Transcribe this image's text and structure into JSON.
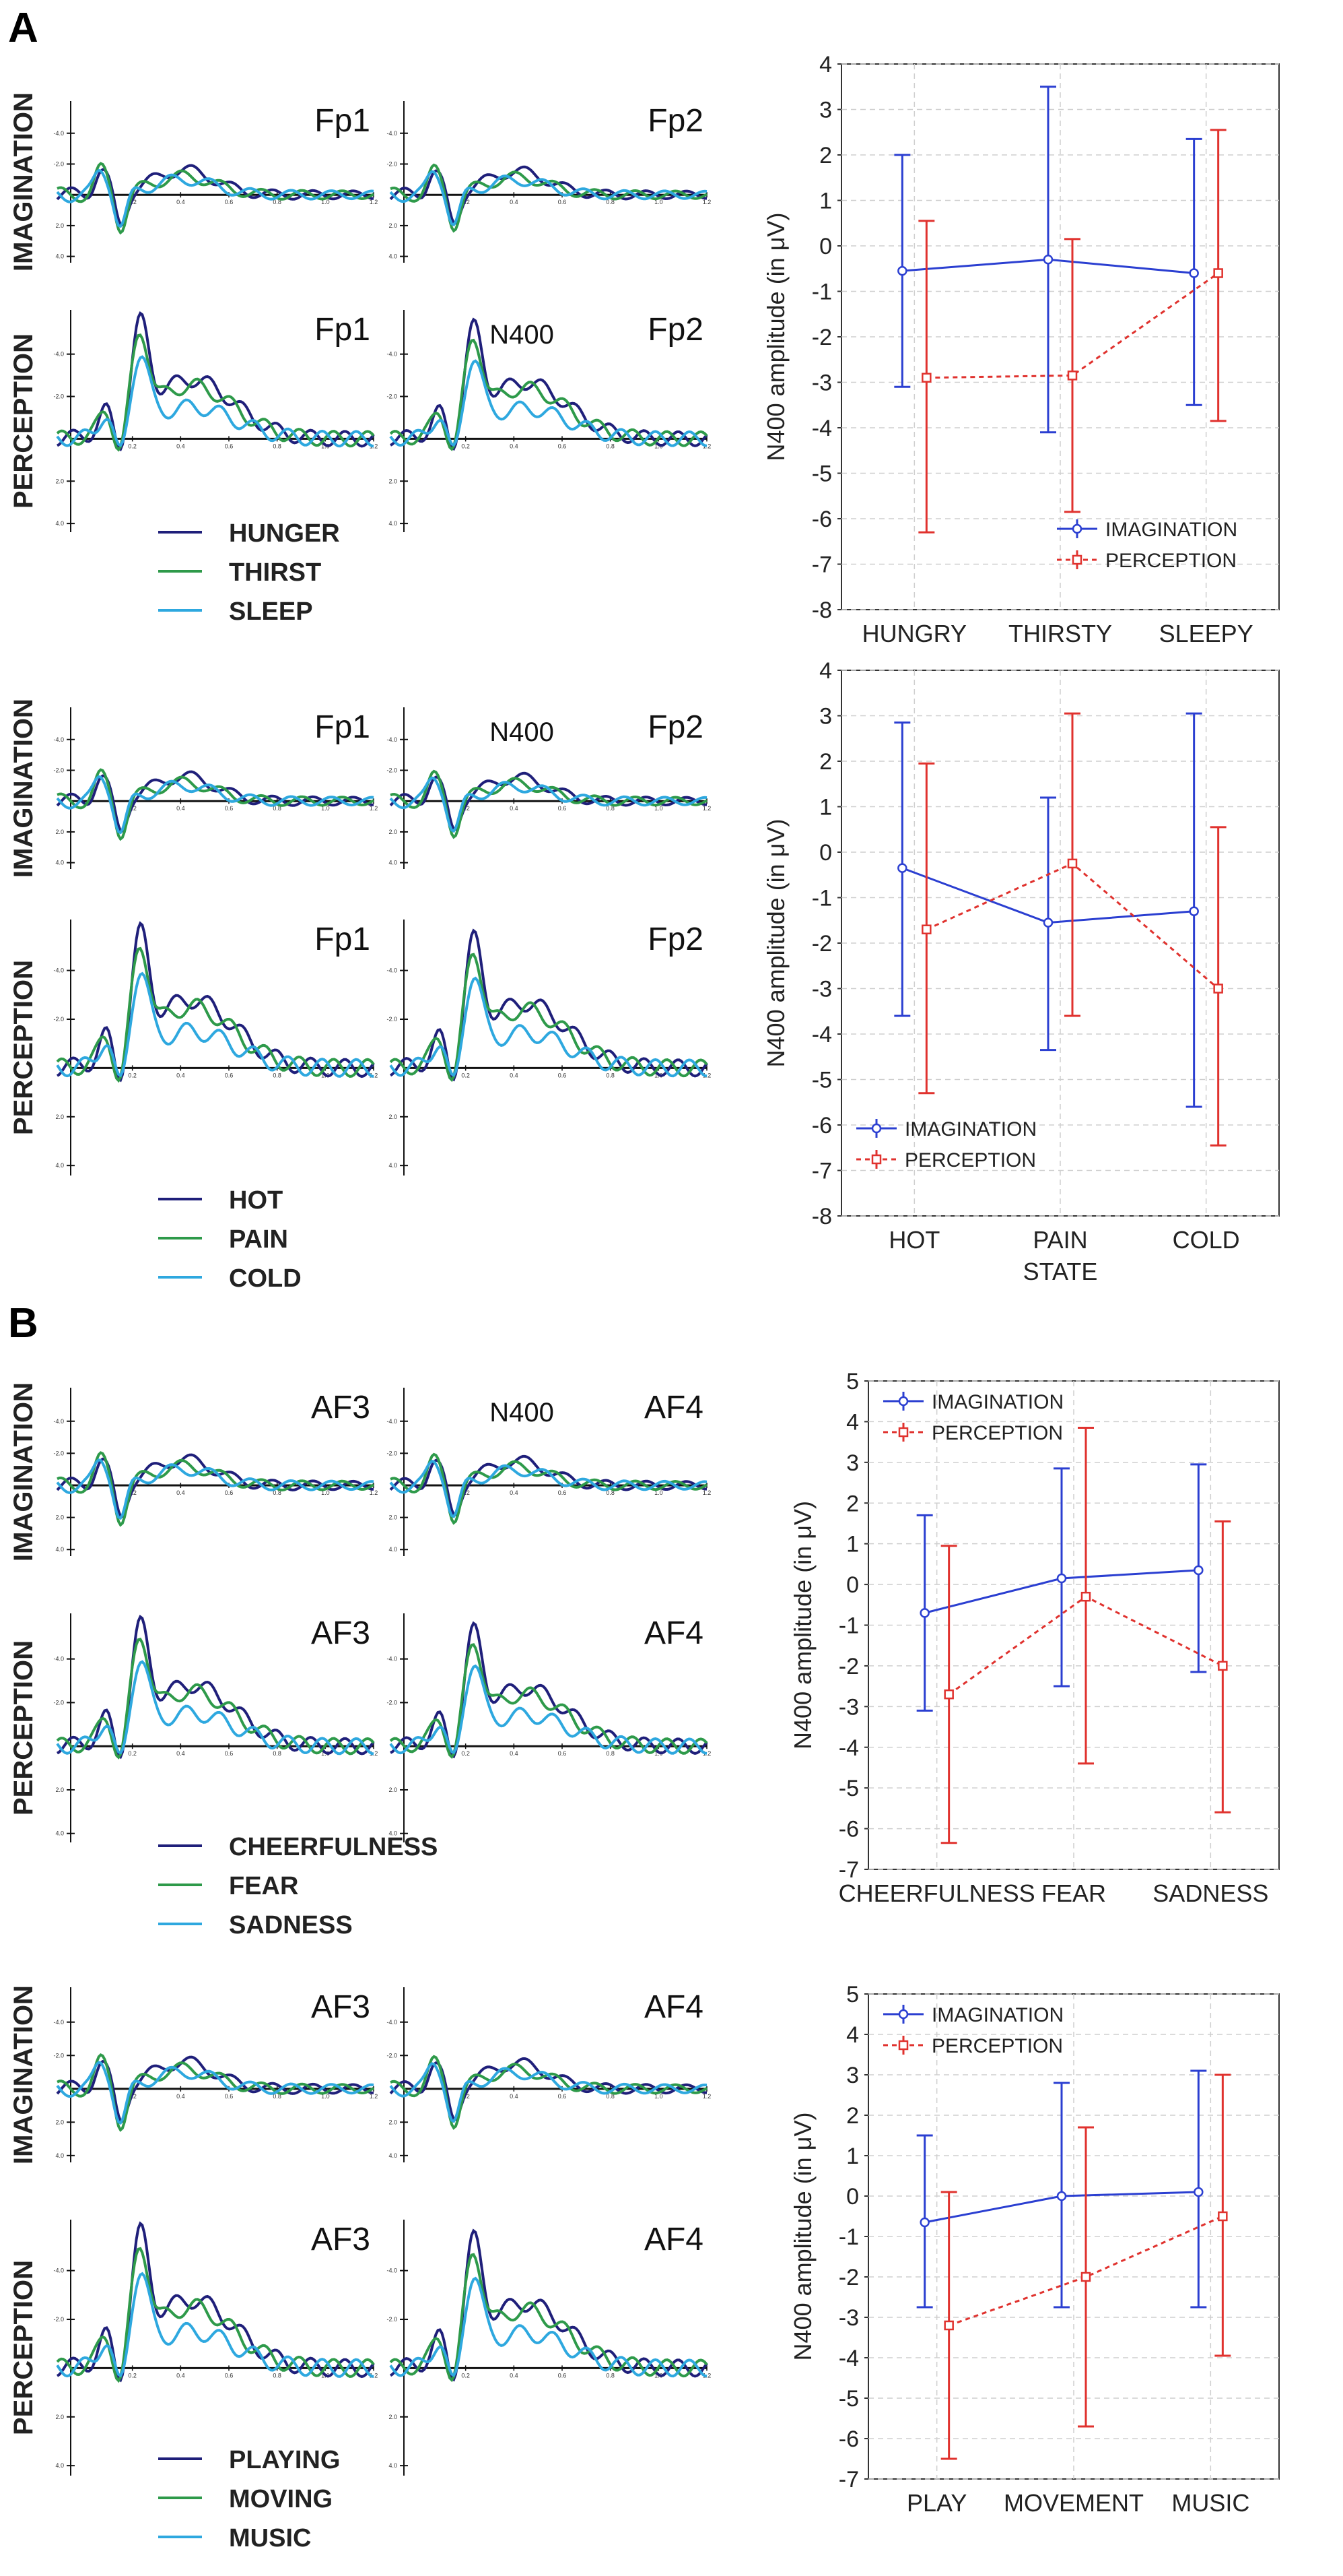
{
  "colors": {
    "navy": "#1f1f7a",
    "green": "#2e9a4a",
    "cyan": "#2ea8df",
    "imagination": "#2b3fd1",
    "perception": "#e0322e"
  },
  "panels": [
    {
      "letter": "A",
      "groups": [
        {
          "electrodes": [
            "Fp1",
            "Fp2"
          ],
          "rows": [
            {
              "label": "IMAGINATION",
              "n400_left": "",
              "n400_right": ""
            },
            {
              "label": "PERCEPTION",
              "n400_left": "",
              "n400_right": "N400"
            }
          ],
          "legend": [
            "HUNGER",
            "THIRST",
            "SLEEP"
          ],
          "erp_ticks": [
            "-4.0",
            "-2.0",
            "2.0",
            "4.0"
          ],
          "time_ticks": [
            "0.2",
            "0.4",
            "0.6",
            "0.8",
            "1.0",
            "1.2"
          ]
        },
        {
          "electrodes": [
            "Fp1",
            "Fp2"
          ],
          "rows": [
            {
              "label": "IMAGINATION",
              "n400_left": "",
              "n400_right": "N400"
            },
            {
              "label": "PERCEPTION",
              "n400_left": "",
              "n400_right": ""
            }
          ],
          "legend": [
            "HOT",
            "PAIN",
            "COLD"
          ],
          "erp_ticks": [
            "-4.0",
            "-2.0",
            "2.0",
            "4.0"
          ],
          "time_ticks": [
            "0.2",
            "0.4",
            "0.6",
            "0.8",
            "1.0",
            "1.2"
          ]
        }
      ]
    },
    {
      "letter": "B",
      "groups": [
        {
          "electrodes": [
            "AF3",
            "AF4"
          ],
          "rows": [
            {
              "label": "IMAGINATION",
              "n400_left": "",
              "n400_right": "N400"
            },
            {
              "label": "PERCEPTION",
              "n400_left": "",
              "n400_right": ""
            }
          ],
          "legend": [
            "CHEERFULNESS",
            "FEAR",
            "SADNESS"
          ],
          "erp_ticks": [
            "-4.0",
            "-2.0",
            "2.0",
            "4.0"
          ],
          "time_ticks": [
            "0.2",
            "0.4",
            "0.6",
            "0.8",
            "1.0",
            "1.2"
          ]
        },
        {
          "electrodes": [
            "AF3",
            "AF4"
          ],
          "rows": [
            {
              "label": "IMAGINATION",
              "n400_left": "",
              "n400_right": ""
            },
            {
              "label": "PERCEPTION",
              "n400_left": "",
              "n400_right": ""
            }
          ],
          "legend": [
            "PLAYING",
            "MOVING",
            "MUSIC"
          ],
          "erp_ticks": [
            "-4.0",
            "-2.0",
            "2.0",
            "4.0"
          ],
          "time_ticks": [
            "0.2",
            "0.4",
            "0.6",
            "0.8",
            "1.0",
            "1.2"
          ]
        }
      ]
    }
  ],
  "chart_data": [
    {
      "type": "line",
      "title": "",
      "categories": [
        "HUNGRY",
        "THIRSTY",
        "SLEEPY"
      ],
      "xlabel": "",
      "ylabel": "N400 amplitude (in μV)",
      "ylim": [
        -8,
        4
      ],
      "yticks": [
        4,
        3,
        2,
        1,
        0,
        -1,
        -2,
        -3,
        -4,
        -5,
        -6,
        -7,
        -8
      ],
      "legend_position": "bottom-right",
      "series": [
        {
          "name": "IMAGINATION",
          "values": [
            -0.55,
            -0.3,
            -0.6
          ],
          "err_low": [
            -3.1,
            -4.1,
            -3.5
          ],
          "err_high": [
            2.0,
            3.5,
            2.35
          ]
        },
        {
          "name": "PERCEPTION",
          "values": [
            -2.9,
            -2.85,
            -0.6
          ],
          "err_low": [
            -6.3,
            -5.85,
            -3.85
          ],
          "err_high": [
            0.55,
            0.15,
            2.55
          ]
        }
      ]
    },
    {
      "type": "line",
      "title": "",
      "categories": [
        "HOT",
        "PAIN",
        "COLD"
      ],
      "xlabel": "STATE",
      "ylabel": "N400 amplitude (in μV)",
      "ylim": [
        -8,
        4
      ],
      "yticks": [
        4,
        3,
        2,
        1,
        0,
        -1,
        -2,
        -3,
        -4,
        -5,
        -6,
        -7,
        -8
      ],
      "legend_position": "bottom-left",
      "series": [
        {
          "name": "IMAGINATION",
          "values": [
            -0.35,
            -1.55,
            -1.3
          ],
          "err_low": [
            -3.6,
            -4.35,
            -5.6
          ],
          "err_high": [
            2.85,
            1.2,
            3.05
          ]
        },
        {
          "name": "PERCEPTION",
          "values": [
            -1.7,
            -0.25,
            -3.0
          ],
          "err_low": [
            -5.3,
            -3.6,
            -6.45
          ],
          "err_high": [
            1.95,
            3.05,
            0.55
          ]
        }
      ]
    },
    {
      "type": "line",
      "title": "",
      "categories": [
        "CHEERFULNESS",
        "FEAR",
        "SADNESS"
      ],
      "xlabel": "",
      "ylabel": "N400 amplitude (in μV)",
      "ylim": [
        -7,
        5
      ],
      "yticks": [
        5,
        4,
        3,
        2,
        1,
        0,
        -1,
        -2,
        -3,
        -4,
        -5,
        -6,
        -7
      ],
      "legend_position": "top-left",
      "series": [
        {
          "name": "IMAGINATION",
          "values": [
            -0.7,
            0.15,
            0.35
          ],
          "err_low": [
            -3.1,
            -2.5,
            -2.15
          ],
          "err_high": [
            1.7,
            2.85,
            2.95
          ]
        },
        {
          "name": "PERCEPTION",
          "values": [
            -2.7,
            -0.3,
            -2.0
          ],
          "err_low": [
            -6.35,
            -4.4,
            -5.6
          ],
          "err_high": [
            0.95,
            3.85,
            1.55
          ]
        }
      ]
    },
    {
      "type": "line",
      "title": "",
      "categories": [
        "PLAY",
        "MOVEMENT",
        "MUSIC"
      ],
      "xlabel": "",
      "ylabel": "N400 amplitude (in μV)",
      "ylim": [
        -7,
        5
      ],
      "yticks": [
        5,
        4,
        3,
        2,
        1,
        0,
        -1,
        -2,
        -3,
        -4,
        -5,
        -6,
        -7
      ],
      "legend_position": "top-left",
      "series": [
        {
          "name": "IMAGINATION",
          "values": [
            -0.65,
            0.0,
            0.1
          ],
          "err_low": [
            -2.75,
            -2.75,
            -2.75
          ],
          "err_high": [
            1.5,
            2.8,
            3.1
          ]
        },
        {
          "name": "PERCEPTION",
          "values": [
            -3.2,
            -2.0,
            -0.5
          ],
          "err_low": [
            -6.5,
            -5.7,
            -3.95
          ],
          "err_high": [
            0.1,
            1.7,
            3.0
          ]
        }
      ]
    }
  ]
}
